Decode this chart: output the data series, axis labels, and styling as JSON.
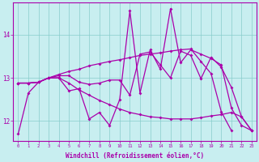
{
  "background_color": "#c8eef0",
  "grid_color": "#88cccc",
  "line_color": "#aa00aa",
  "xlabel": "Windchill (Refroidissement éolien,°C)",
  "xlim": [
    -0.5,
    23.5
  ],
  "ylim": [
    11.55,
    14.75
  ],
  "yticks": [
    12,
    13,
    14
  ],
  "xticks": [
    0,
    1,
    2,
    3,
    4,
    5,
    6,
    7,
    8,
    9,
    10,
    11,
    12,
    13,
    14,
    15,
    16,
    17,
    18,
    19,
    20,
    21,
    22,
    23
  ],
  "hours": [
    0,
    1,
    2,
    3,
    4,
    5,
    6,
    7,
    8,
    9,
    10,
    11,
    12,
    13,
    14,
    15,
    16,
    17,
    18,
    19,
    20,
    21,
    22,
    23
  ],
  "line1": [
    11.7,
    12.65,
    12.9,
    13.0,
    13.0,
    12.7,
    12.75,
    12.05,
    12.2,
    11.9,
    12.5,
    14.55,
    12.65,
    13.65,
    13.2,
    14.6,
    13.35,
    13.65,
    13.55,
    13.45,
    13.3,
    12.3,
    11.9,
    11.78
  ],
  "line2": [
    12.88,
    12.88,
    12.9,
    13.0,
    13.08,
    13.15,
    13.2,
    13.28,
    13.33,
    13.38,
    13.42,
    13.47,
    13.52,
    13.55,
    13.58,
    13.62,
    13.65,
    13.67,
    13.38,
    13.1,
    12.22,
    11.78,
    null,
    null
  ],
  "line3": [
    12.88,
    12.88,
    12.9,
    13.0,
    13.05,
    13.05,
    12.9,
    12.85,
    12.88,
    12.95,
    12.95,
    12.6,
    13.55,
    13.6,
    13.3,
    13.0,
    13.62,
    13.52,
    12.98,
    13.48,
    13.25,
    12.78,
    12.1,
    11.78
  ],
  "line4": [
    12.88,
    12.88,
    12.9,
    13.0,
    13.0,
    12.88,
    12.72,
    12.6,
    12.48,
    12.38,
    12.28,
    12.2,
    12.15,
    12.1,
    12.08,
    12.05,
    12.05,
    12.05,
    12.08,
    12.12,
    12.15,
    12.2,
    12.1,
    11.78
  ]
}
